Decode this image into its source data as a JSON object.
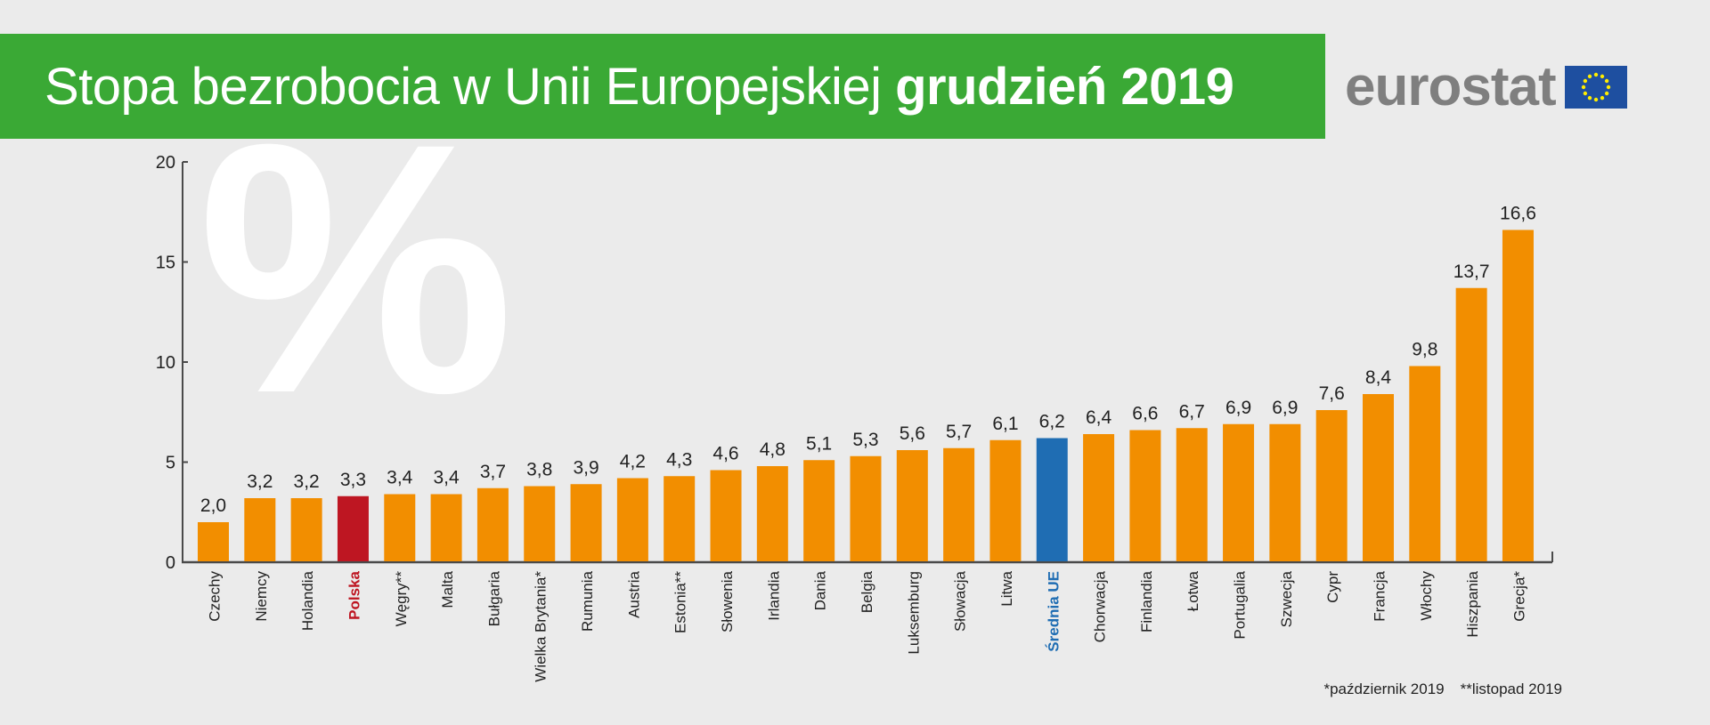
{
  "header": {
    "title_regular": "Stopa bezrobocia w Unii Europejskiej ",
    "title_bold": "grudzień 2019",
    "logo_text": "eurostat",
    "logo_icon": "eu-flag-icon"
  },
  "decoration": {
    "percent_glyph": "%"
  },
  "colors": {
    "header_green": "#3aa935",
    "bar_default": "#f28e00",
    "bar_poland": "#be1622",
    "bar_eu_average": "#1f6db3",
    "label_poland": "#be1622",
    "label_eu_average": "#1f6db3",
    "background": "#ebebeb"
  },
  "footnotes": [
    "*październik 2019",
    "**listopad 2019"
  ],
  "chart_data": {
    "type": "bar",
    "title": "Stopa bezrobocia w Unii Europejskiej grudzień 2019",
    "xlabel": "",
    "ylabel": "%",
    "ylim": [
      0,
      20
    ],
    "yticks": [
      0,
      5,
      10,
      15,
      20
    ],
    "grid": false,
    "decimal_separator": ",",
    "categories": [
      "Czechy",
      "Niemcy",
      "Holandia",
      "Polska",
      "Węgry**",
      "Malta",
      "Bułgaria",
      "Wielka Brytania*",
      "Rumunia",
      "Austria",
      "Estonia**",
      "Słowenia",
      "Irlandia",
      "Dania",
      "Belgia",
      "Luksemburg",
      "Słowacja",
      "Litwa",
      "Średnia UE",
      "Chorwacja",
      "Finlandia",
      "Łotwa",
      "Portugalia",
      "Szwecja",
      "Cypr",
      "Francja",
      "Włochy",
      "Hiszpania",
      "Grecja*"
    ],
    "values": [
      2.0,
      3.2,
      3.2,
      3.3,
      3.4,
      3.4,
      3.7,
      3.8,
      3.9,
      4.2,
      4.3,
      4.6,
      4.8,
      5.1,
      5.3,
      5.6,
      5.7,
      6.1,
      6.2,
      6.4,
      6.6,
      6.7,
      6.9,
      6.9,
      7.6,
      8.4,
      9.8,
      13.7,
      16.6
    ],
    "value_labels": [
      "2,0",
      "3,2",
      "3,2",
      "3,3",
      "3,4",
      "3,4",
      "3,7",
      "3,8",
      "3,9",
      "4,2",
      "4,3",
      "4,6",
      "4,8",
      "5,1",
      "5,3",
      "5,6",
      "5,7",
      "6,1",
      "6,2",
      "6,4",
      "6,6",
      "6,7",
      "6,9",
      "6,9",
      "7,6",
      "8,4",
      "9,8",
      "13,7",
      "16,6"
    ],
    "highlights": {
      "Polska": "poland",
      "Średnia UE": "eu_average"
    }
  }
}
